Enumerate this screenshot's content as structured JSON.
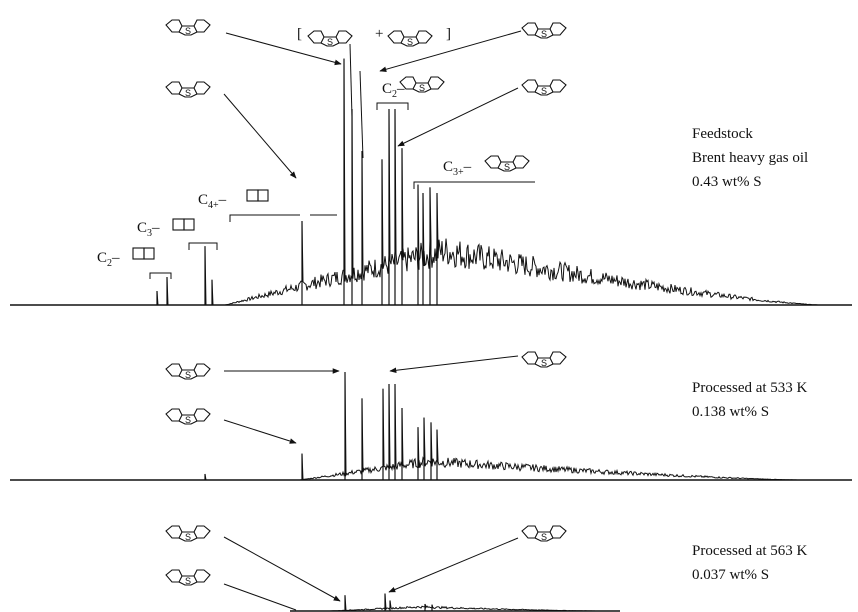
{
  "colors": {
    "ink": "#111111",
    "background": "#ffffff"
  },
  "panels": [
    {
      "caption": [
        "Feedstock",
        "Brent heavy gas oil",
        "0.43 wt% S"
      ],
      "group_labels": [
        {
          "prefix": "C",
          "sub": "2",
          "tail": "–"
        },
        {
          "prefix": "C",
          "sub": "3",
          "tail": "–"
        },
        {
          "prefix": "C",
          "sub": "4+",
          "tail": "–"
        },
        {
          "prefix": "C",
          "sub": "2",
          "tail": "–"
        },
        {
          "prefix": "C",
          "sub": "3+",
          "tail": "–"
        }
      ],
      "bracket_text": {
        "open": "[",
        "plus": "+",
        "close": "]"
      }
    },
    {
      "caption": [
        "Processed at 533 K",
        "0.138 wt% S"
      ]
    },
    {
      "caption": [
        "Processed at 563 K",
        "0.037 wt% S"
      ]
    }
  ],
  "molecule_label": "S",
  "chart_data": [
    {
      "type": "line",
      "title": "Feedstock",
      "subtitle": "Brent heavy gas oil 0.43 wt% S",
      "xlabel": "",
      "ylabel": "",
      "grid": false,
      "axes": "none",
      "peaks_x": [
        157,
        167,
        205,
        212,
        302,
        344,
        352,
        362,
        382,
        389,
        395,
        402,
        418,
        423,
        430,
        437
      ],
      "peaks_y": [
        0.05,
        0.1,
        0.21,
        0.09,
        0.3,
        0.88,
        0.7,
        0.55,
        0.52,
        0.7,
        0.7,
        0.56,
        0.43,
        0.4,
        0.42,
        0.4
      ],
      "envelope_max": 0.25
    },
    {
      "type": "line",
      "title": "Processed at 533 K",
      "subtitle": "0.138 wt% S",
      "xlabel": "",
      "ylabel": "",
      "grid": false,
      "axes": "none",
      "peaks_x": [
        205,
        302,
        345,
        362,
        383,
        389,
        395,
        402,
        418,
        424,
        431,
        437
      ],
      "peaks_y": [
        0.05,
        0.22,
        0.9,
        0.68,
        0.76,
        0.8,
        0.8,
        0.6,
        0.44,
        0.52,
        0.48,
        0.42
      ],
      "envelope_max": 0.2
    },
    {
      "type": "line",
      "title": "Processed at 563 K",
      "subtitle": "0.037 wt% S",
      "xlabel": "",
      "ylabel": "",
      "grid": false,
      "axes": "none",
      "peaks_x": [
        345,
        385,
        390,
        425,
        432
      ],
      "peaks_y": [
        0.45,
        0.5,
        0.3,
        0.2,
        0.18
      ],
      "envelope_max": 0.15
    }
  ]
}
